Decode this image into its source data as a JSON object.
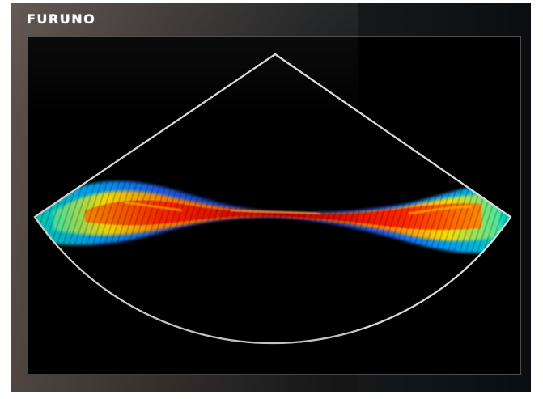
{
  "brand": {
    "name": "FURUNO"
  },
  "display": {
    "colors": {
      "frame_outline": "#d8d8d8",
      "background": "#000000",
      "echo_palette": [
        "#0033cc",
        "#00aaff",
        "#00e0c0",
        "#ffe000",
        "#ff8800",
        "#ff2200",
        "#c00000"
      ]
    },
    "icons": {
      "sector_outline": "sonar-sector-icon",
      "echo_band": "sonar-echo-icon"
    }
  }
}
